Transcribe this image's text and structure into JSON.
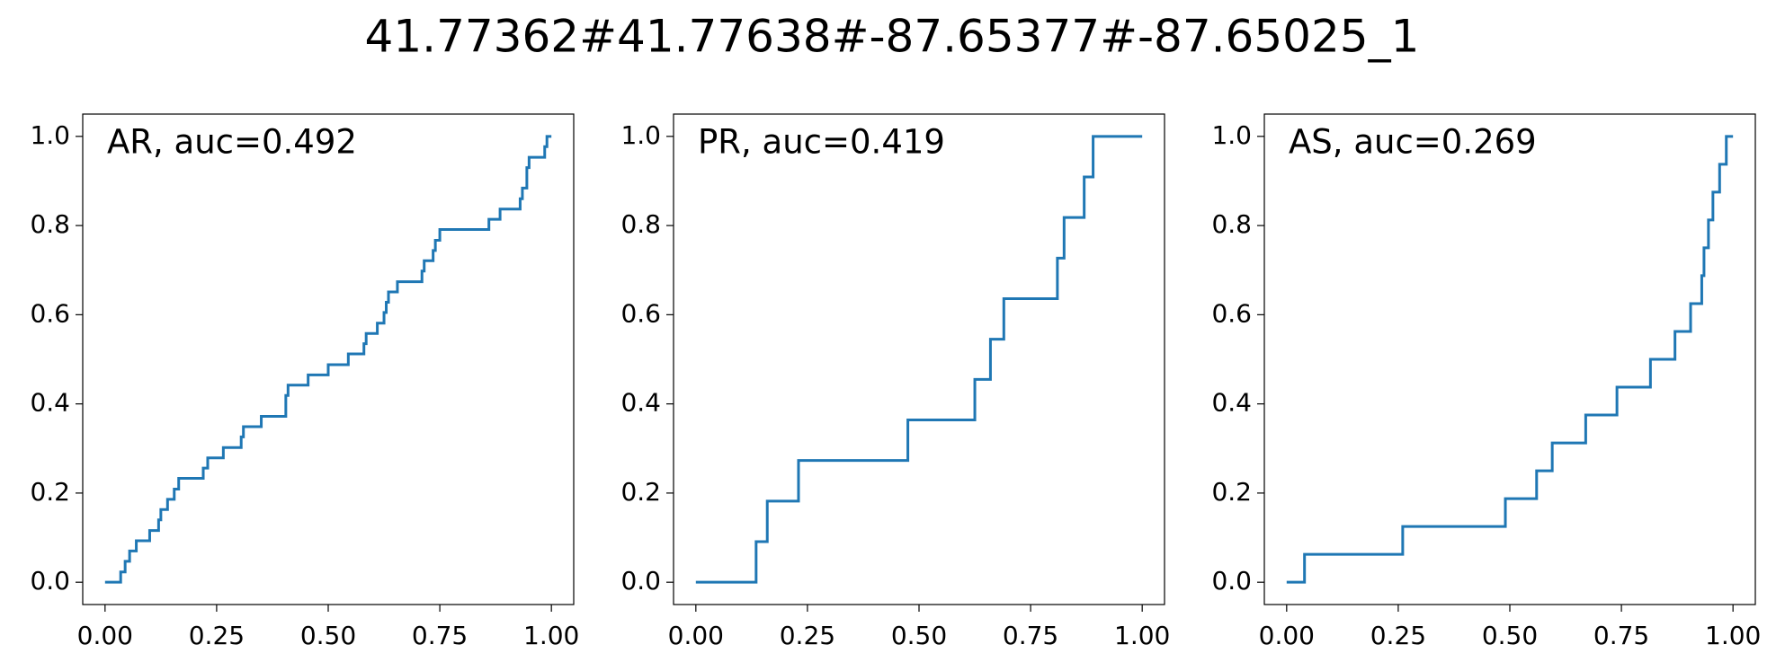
{
  "title": "41.77362#41.77638#-87.65377#-87.65025_1",
  "chart_data": [
    {
      "type": "line",
      "annotation": "AR, auc=0.492",
      "color": "#1f77b4",
      "x": [
        0,
        0.035,
        0.035,
        0.045,
        0.045,
        0.055,
        0.055,
        0.07,
        0.07,
        0.1,
        0.1,
        0.12,
        0.12,
        0.125,
        0.125,
        0.14,
        0.14,
        0.155,
        0.155,
        0.165,
        0.165,
        0.22,
        0.22,
        0.23,
        0.23,
        0.265,
        0.265,
        0.305,
        0.305,
        0.31,
        0.31,
        0.35,
        0.35,
        0.405,
        0.405,
        0.41,
        0.41,
        0.455,
        0.455,
        0.5,
        0.5,
        0.545,
        0.545,
        0.58,
        0.58,
        0.585,
        0.585,
        0.61,
        0.61,
        0.625,
        0.625,
        0.63,
        0.63,
        0.635,
        0.635,
        0.655,
        0.655,
        0.71,
        0.71,
        0.715,
        0.715,
        0.735,
        0.735,
        0.74,
        0.74,
        0.75,
        0.75,
        0.86,
        0.86,
        0.885,
        0.885,
        0.93,
        0.93,
        0.935,
        0.935,
        0.945,
        0.945,
        0.95,
        0.95,
        0.985,
        0.985,
        0.99,
        0.99,
        1.0
      ],
      "values": [
        0,
        0,
        0.023,
        0.023,
        0.047,
        0.047,
        0.07,
        0.07,
        0.093,
        0.093,
        0.116,
        0.116,
        0.14,
        0.14,
        0.163,
        0.163,
        0.186,
        0.186,
        0.209,
        0.209,
        0.233,
        0.233,
        0.256,
        0.256,
        0.279,
        0.279,
        0.302,
        0.302,
        0.326,
        0.326,
        0.349,
        0.349,
        0.372,
        0.372,
        0.419,
        0.419,
        0.442,
        0.442,
        0.465,
        0.465,
        0.488,
        0.488,
        0.512,
        0.512,
        0.535,
        0.535,
        0.558,
        0.558,
        0.581,
        0.581,
        0.605,
        0.605,
        0.628,
        0.628,
        0.651,
        0.651,
        0.674,
        0.674,
        0.698,
        0.698,
        0.721,
        0.721,
        0.744,
        0.744,
        0.767,
        0.767,
        0.791,
        0.791,
        0.814,
        0.814,
        0.837,
        0.837,
        0.86,
        0.86,
        0.884,
        0.884,
        0.93,
        0.93,
        0.953,
        0.953,
        0.977,
        0.977,
        1.0,
        1.0
      ],
      "xlim": [
        -0.05,
        1.05
      ],
      "ylim": [
        -0.05,
        1.05
      ],
      "xticks": [
        {
          "value": 0,
          "label": "0.00"
        },
        {
          "value": 0.25,
          "label": "0.25"
        },
        {
          "value": 0.5,
          "label": "0.50"
        },
        0.75,
        {
          "value": 1,
          "label": "1.00"
        }
      ],
      "yticks": [
        {
          "value": 0,
          "label": "0.0"
        },
        0.2,
        0.4,
        0.6,
        0.8,
        {
          "value": 1,
          "label": "1.0"
        }
      ]
    },
    {
      "type": "line",
      "annotation": "PR, auc=0.419",
      "color": "#1f77b4",
      "x": [
        0,
        0.135,
        0.135,
        0.16,
        0.16,
        0.23,
        0.23,
        0.475,
        0.475,
        0.625,
        0.625,
        0.66,
        0.66,
        0.69,
        0.69,
        0.81,
        0.81,
        0.825,
        0.825,
        0.87,
        0.87,
        0.89,
        0.89,
        1
      ],
      "values": [
        0,
        0,
        0.091,
        0.091,
        0.182,
        0.182,
        0.273,
        0.273,
        0.364,
        0.364,
        0.455,
        0.455,
        0.545,
        0.545,
        0.636,
        0.636,
        0.727,
        0.727,
        0.818,
        0.818,
        0.909,
        0.909,
        1,
        1
      ],
      "xlim": [
        -0.05,
        1.05
      ],
      "ylim": [
        -0.05,
        1.05
      ],
      "xticks": [
        {
          "value": 0,
          "label": "0.00"
        },
        {
          "value": 0.25,
          "label": "0.25"
        },
        {
          "value": 0.5,
          "label": "0.50"
        },
        0.75,
        {
          "value": 1,
          "label": "1.00"
        }
      ],
      "yticks": [
        {
          "value": 0,
          "label": "0.0"
        },
        0.2,
        0.4,
        0.6,
        0.8,
        {
          "value": 1,
          "label": "1.0"
        }
      ]
    },
    {
      "type": "line",
      "annotation": "AS, auc=0.269",
      "color": "#1f77b4",
      "x": [
        0,
        0.04,
        0.04,
        0.26,
        0.26,
        0.49,
        0.49,
        0.56,
        0.56,
        0.595,
        0.595,
        0.67,
        0.67,
        0.74,
        0.74,
        0.815,
        0.815,
        0.87,
        0.87,
        0.905,
        0.905,
        0.93,
        0.93,
        0.935,
        0.935,
        0.945,
        0.945,
        0.955,
        0.955,
        0.97,
        0.97,
        0.985,
        0.985,
        1
      ],
      "values": [
        0,
        0,
        0.0625,
        0.0625,
        0.125,
        0.125,
        0.1875,
        0.1875,
        0.25,
        0.25,
        0.3125,
        0.3125,
        0.375,
        0.375,
        0.4375,
        0.4375,
        0.5,
        0.5,
        0.5625,
        0.5625,
        0.625,
        0.625,
        0.6875,
        0.6875,
        0.75,
        0.75,
        0.8125,
        0.8125,
        0.875,
        0.875,
        0.9375,
        0.9375,
        1,
        1
      ],
      "xlim": [
        -0.05,
        1.05
      ],
      "ylim": [
        -0.05,
        1.05
      ],
      "xticks": [
        {
          "value": 0,
          "label": "0.00"
        },
        {
          "value": 0.25,
          "label": "0.25"
        },
        {
          "value": 0.5,
          "label": "0.50"
        },
        0.75,
        {
          "value": 1,
          "label": "1.00"
        }
      ],
      "yticks": [
        {
          "value": 0,
          "label": "0.0"
        },
        0.2,
        0.4,
        0.6,
        0.8,
        {
          "value": 1,
          "label": "1.0"
        }
      ]
    }
  ]
}
